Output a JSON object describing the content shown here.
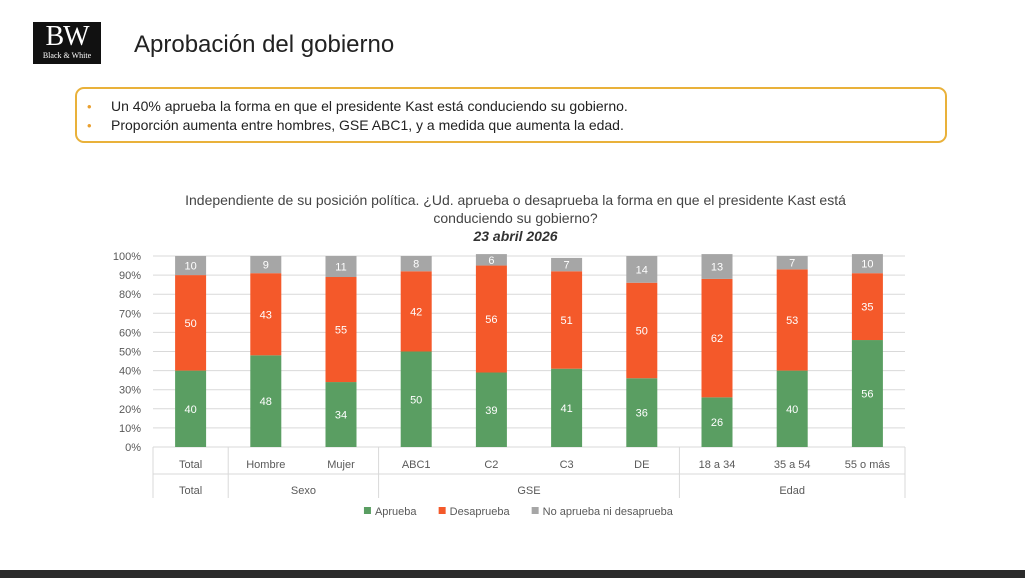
{
  "header": {
    "logo_mark": "BW",
    "logo_sub": "Black & White",
    "title": "Aprobación del gobierno"
  },
  "callout": {
    "bullets": [
      "Un 40% aprueba la forma en que el presidente Kast está conduciendo su gobierno.",
      "Proporción aumenta entre hombres, GSE ABC1, y a medida que aumenta la edad."
    ]
  },
  "chart_data": {
    "type": "bar",
    "stacked": true,
    "title": "Independiente de su posición política. ¿Ud. aprueba o desaprueba la forma en que el presidente Kast está conduciendo su gobierno?",
    "subtitle": "23 abril 2026",
    "categories": [
      "Total",
      "Hombre",
      "Mujer",
      "ABC1",
      "C2",
      "C3",
      "DE",
      "18 a 34",
      "35 a 54",
      "55 o más"
    ],
    "groups": [
      {
        "label": "Total",
        "count": 1
      },
      {
        "label": "Sexo",
        "count": 2
      },
      {
        "label": "GSE",
        "count": 4
      },
      {
        "label": "Edad",
        "count": 3
      }
    ],
    "series": [
      {
        "name": "Aprueba",
        "color": "#5a9e62",
        "values": [
          40,
          48,
          34,
          50,
          39,
          41,
          36,
          26,
          40,
          56
        ]
      },
      {
        "name": "Desaprueba",
        "color": "#f4592a",
        "values": [
          50,
          43,
          55,
          42,
          56,
          51,
          50,
          62,
          53,
          35
        ]
      },
      {
        "name": "No aprueba ni desaprueba",
        "color": "#a6a6a6",
        "values": [
          10,
          9,
          11,
          8,
          6,
          7,
          14,
          13,
          7,
          10
        ]
      }
    ],
    "y_ticks": [
      "0%",
      "10%",
      "20%",
      "30%",
      "40%",
      "50%",
      "60%",
      "70%",
      "80%",
      "90%",
      "100%"
    ],
    "ylim": [
      0,
      100
    ],
    "grid": true,
    "legend_position": "bottom"
  }
}
